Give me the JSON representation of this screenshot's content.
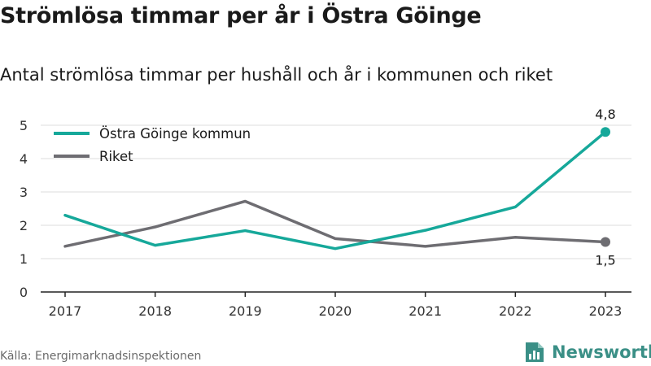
{
  "title": "Strömlösa timmar per år i Östra Göinge",
  "subtitle": "Antal strömlösa timmar per hushåll och år i kommunen och riket",
  "source": "Källa: Energimarknadsinspektionen",
  "brand": {
    "name": "Newsworthy",
    "icon": "bar-chart-doc-icon",
    "color": "#3a8f86"
  },
  "chart_data": {
    "type": "line",
    "x": [
      "2017",
      "2018",
      "2019",
      "2020",
      "2021",
      "2022",
      "2023"
    ],
    "series": [
      {
        "name": "Östra Göinge kommun",
        "color": "#16a89a",
        "values": [
          2.3,
          1.4,
          1.84,
          1.3,
          1.85,
          2.55,
          4.8
        ]
      },
      {
        "name": "Riket",
        "color": "#6e6d72",
        "values": [
          1.37,
          1.95,
          2.72,
          1.6,
          1.37,
          1.64,
          1.5
        ]
      }
    ],
    "end_labels": [
      "4,8",
      "1,5"
    ],
    "yticks": [
      "0",
      "1",
      "2",
      "3",
      "4",
      "5"
    ],
    "ylim": [
      0,
      5
    ],
    "grid": true,
    "legend_position": "top-left"
  }
}
